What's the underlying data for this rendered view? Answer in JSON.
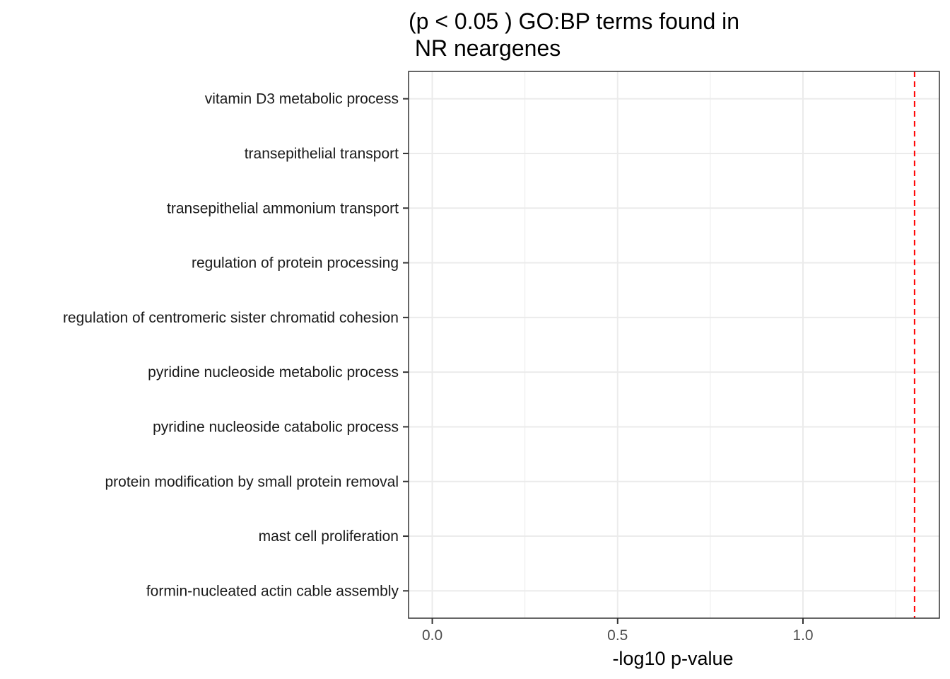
{
  "chart_data": {
    "type": "bar",
    "title_lines": [
      "(p < 0.05 ) GO:BP terms found in",
      " NR neargenes"
    ],
    "xlabel": "-log10 p-value",
    "ylabel": "",
    "categories": [
      "vitamin D3 metabolic process",
      "transepithelial transport",
      "transepithelial ammonium transport",
      "regulation of protein processing",
      "regulation of centromeric sister chromatid cohesion",
      "pyridine nucleoside metabolic process",
      "pyridine nucleoside catabolic process",
      "protein modification by small protein removal",
      "mast cell proliferation",
      "formin-nucleated actin cable assembly"
    ],
    "values": [
      0,
      0,
      0,
      0,
      0,
      0,
      0,
      0,
      0,
      0
    ],
    "xlim": [
      -0.064,
      1.368
    ],
    "x_ticks": [
      0.0,
      0.5,
      1.0
    ],
    "x_tick_labels": [
      "0.0",
      "0.5",
      "1.0"
    ],
    "x_minor_ticks": [
      0.25,
      0.75,
      1.25
    ],
    "threshold": 1.301,
    "threshold_color": "#ff0000",
    "grid": true,
    "panel_border": true
  }
}
